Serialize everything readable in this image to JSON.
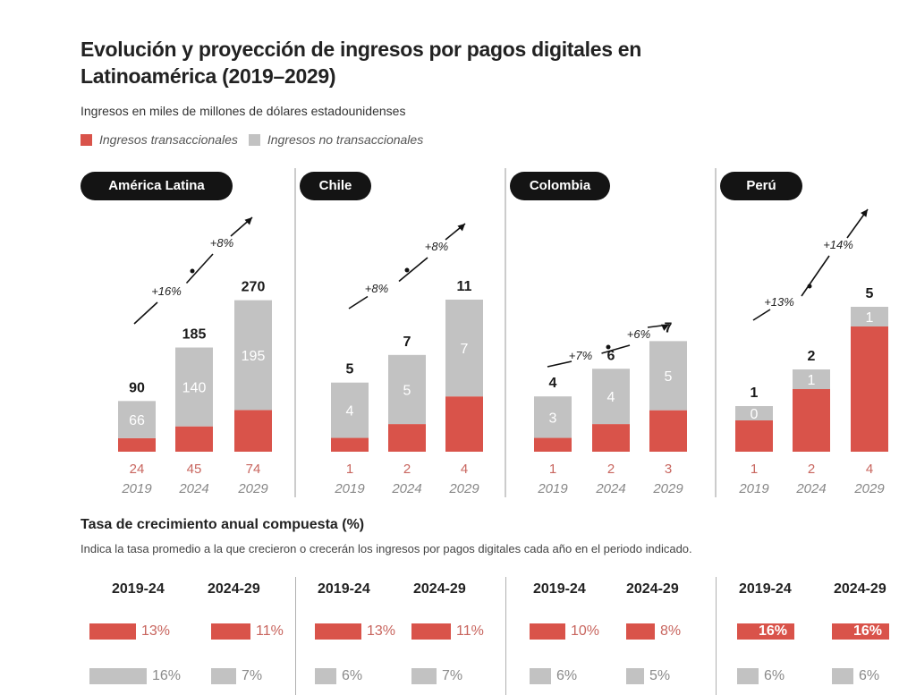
{
  "title": "Evolución y proyección de ingresos por pagos digitales en Latinoamérica (2019–2029)",
  "subtitle": "Ingresos en miles de millones de dólares estadounidenses",
  "legend": [
    {
      "label": "Ingresos transaccionales",
      "color": "#d9534a"
    },
    {
      "label": "Ingresos no transaccionales",
      "color": "#c2c2c2"
    }
  ],
  "colors": {
    "transactional": "#d9534a",
    "non_transactional": "#c2c2c2",
    "text_red": "#c8655e",
    "year_gray": "#888888"
  },
  "chart_data": [
    {
      "type": "bar",
      "stacked": true,
      "title": "América Latina",
      "categories": [
        "2019",
        "2024",
        "2029"
      ],
      "series": [
        {
          "name": "Ingresos transaccionales",
          "values": [
            24,
            45,
            74
          ]
        },
        {
          "name": "Ingresos no transaccionales",
          "values": [
            66,
            140,
            195
          ]
        }
      ],
      "totals": [
        90,
        185,
        270
      ],
      "growth_annotations": [
        "+16%",
        "+8%"
      ]
    },
    {
      "type": "bar",
      "stacked": true,
      "title": "Chile",
      "categories": [
        "2019",
        "2024",
        "2029"
      ],
      "series": [
        {
          "name": "Ingresos transaccionales",
          "values": [
            1,
            2,
            4
          ]
        },
        {
          "name": "Ingresos no transaccionales",
          "values": [
            4,
            5,
            7
          ]
        }
      ],
      "totals": [
        5,
        7,
        11
      ],
      "growth_annotations": [
        "+8%",
        "+8%"
      ]
    },
    {
      "type": "bar",
      "stacked": true,
      "title": "Colombia",
      "categories": [
        "2019",
        "2024",
        "2029"
      ],
      "series": [
        {
          "name": "Ingresos transaccionales",
          "values": [
            1,
            2,
            3
          ]
        },
        {
          "name": "Ingresos no transaccionales",
          "values": [
            3,
            4,
            5
          ]
        }
      ],
      "totals": [
        4,
        6,
        7
      ],
      "growth_annotations": [
        "+7%",
        "+6%"
      ]
    },
    {
      "type": "bar",
      "stacked": true,
      "title": "Perú",
      "categories": [
        "2019",
        "2024",
        "2029"
      ],
      "series": [
        {
          "name": "Ingresos transaccionales",
          "values": [
            1,
            2,
            4
          ]
        },
        {
          "name": "Ingresos no transaccionales",
          "values": [
            0,
            1,
            1
          ]
        }
      ],
      "totals": [
        1,
        2,
        5
      ],
      "growth_annotations": [
        "+13%",
        "+14%"
      ]
    }
  ],
  "cagr": {
    "title": "Tasa de crecimiento anual compuesta (%)",
    "description": "Indica la tasa promedio a la que crecieron o crecerán los ingresos por pagos digitales cada año en el periodo indicado.",
    "periods": [
      "2019-24",
      "2024-29"
    ],
    "regions": [
      {
        "name": "América Latina",
        "transactional": [
          13,
          11
        ],
        "non_transactional": [
          16,
          7
        ]
      },
      {
        "name": "Chile",
        "transactional": [
          13,
          11
        ],
        "non_transactional": [
          6,
          7
        ]
      },
      {
        "name": "Colombia",
        "transactional": [
          10,
          8
        ],
        "non_transactional": [
          6,
          5
        ]
      },
      {
        "name": "Perú",
        "transactional": [
          16,
          16
        ],
        "non_transactional": [
          6,
          6
        ]
      }
    ]
  }
}
